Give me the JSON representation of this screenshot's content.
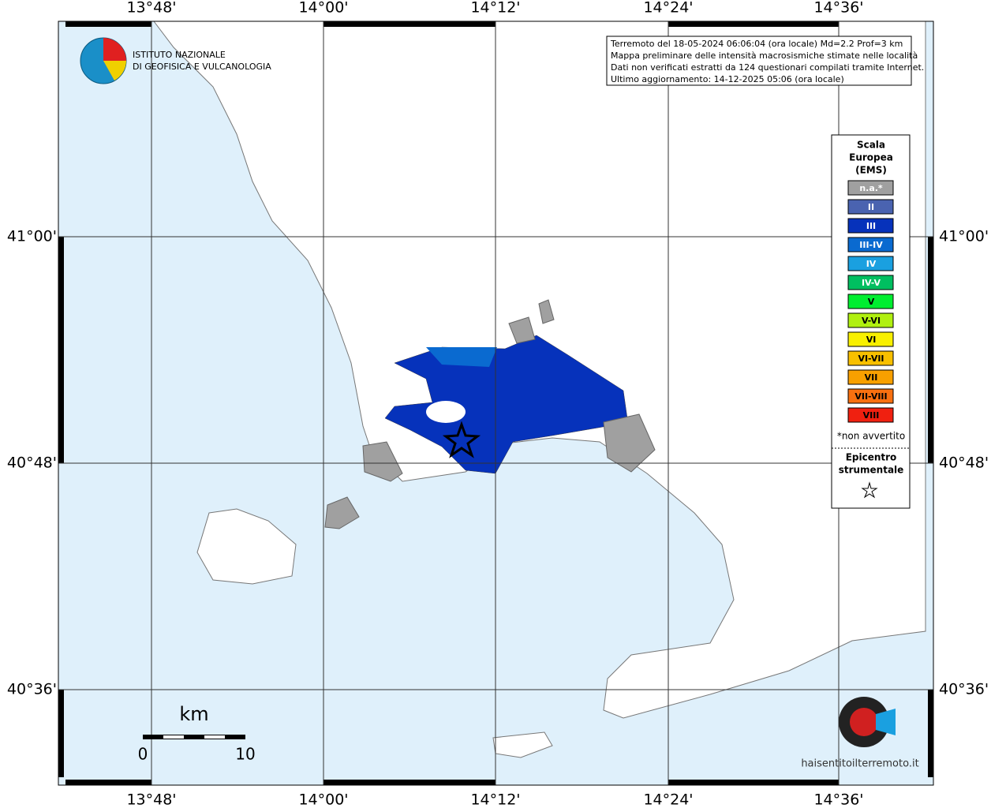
{
  "map": {
    "lon_labels": [
      "13°48'",
      "14°00'",
      "14°12'",
      "14°24'",
      "14°36'"
    ],
    "lat_labels": [
      "41°00'",
      "40°48'",
      "40°36'"
    ]
  },
  "logo": {
    "line1": "ISTITUTO NAZIONALE",
    "line2": "DI GEOFISICA E VULCANOLOGIA"
  },
  "info": [
    "Terremoto del 18-05-2024 06:06:04 (ora locale) Md=2.2 Prof=3 km",
    "Mappa preliminare delle intensità macrosismiche stimate nelle località",
    "Dati non verificati estratti da 124 questionari compilati tramite Internet.",
    "Ultimo aggiornamento: 14-12-2025 05:06 (ora locale)"
  ],
  "legend": {
    "title": [
      "Scala",
      "Europea",
      "(EMS)"
    ],
    "items": [
      {
        "label": "n.a.*",
        "color": "#a0a0a0"
      },
      {
        "label": "II",
        "color": "#4a63b0"
      },
      {
        "label": "III",
        "color": "#0632bb"
      },
      {
        "label": "III-IV",
        "color": "#0a6ad0"
      },
      {
        "label": "IV",
        "color": "#1aa0e0"
      },
      {
        "label": "IV-V",
        "color": "#00bf60"
      },
      {
        "label": "V",
        "color": "#00ee30"
      },
      {
        "label": "V-VI",
        "color": "#b0f010"
      },
      {
        "label": "VI",
        "color": "#f8f000"
      },
      {
        "label": "VI-VII",
        "color": "#f8c000"
      },
      {
        "label": "VII",
        "color": "#f8a000"
      },
      {
        "label": "VII-VIII",
        "color": "#f87010"
      },
      {
        "label": "VIII",
        "color": "#f02010"
      }
    ],
    "note": "*non avvertito",
    "epicenter": [
      "Epicentro",
      "strumentale"
    ]
  },
  "scale": {
    "unit": "km",
    "ticks": [
      "0",
      "10"
    ]
  },
  "site": "haisentitoilterremoto.it"
}
